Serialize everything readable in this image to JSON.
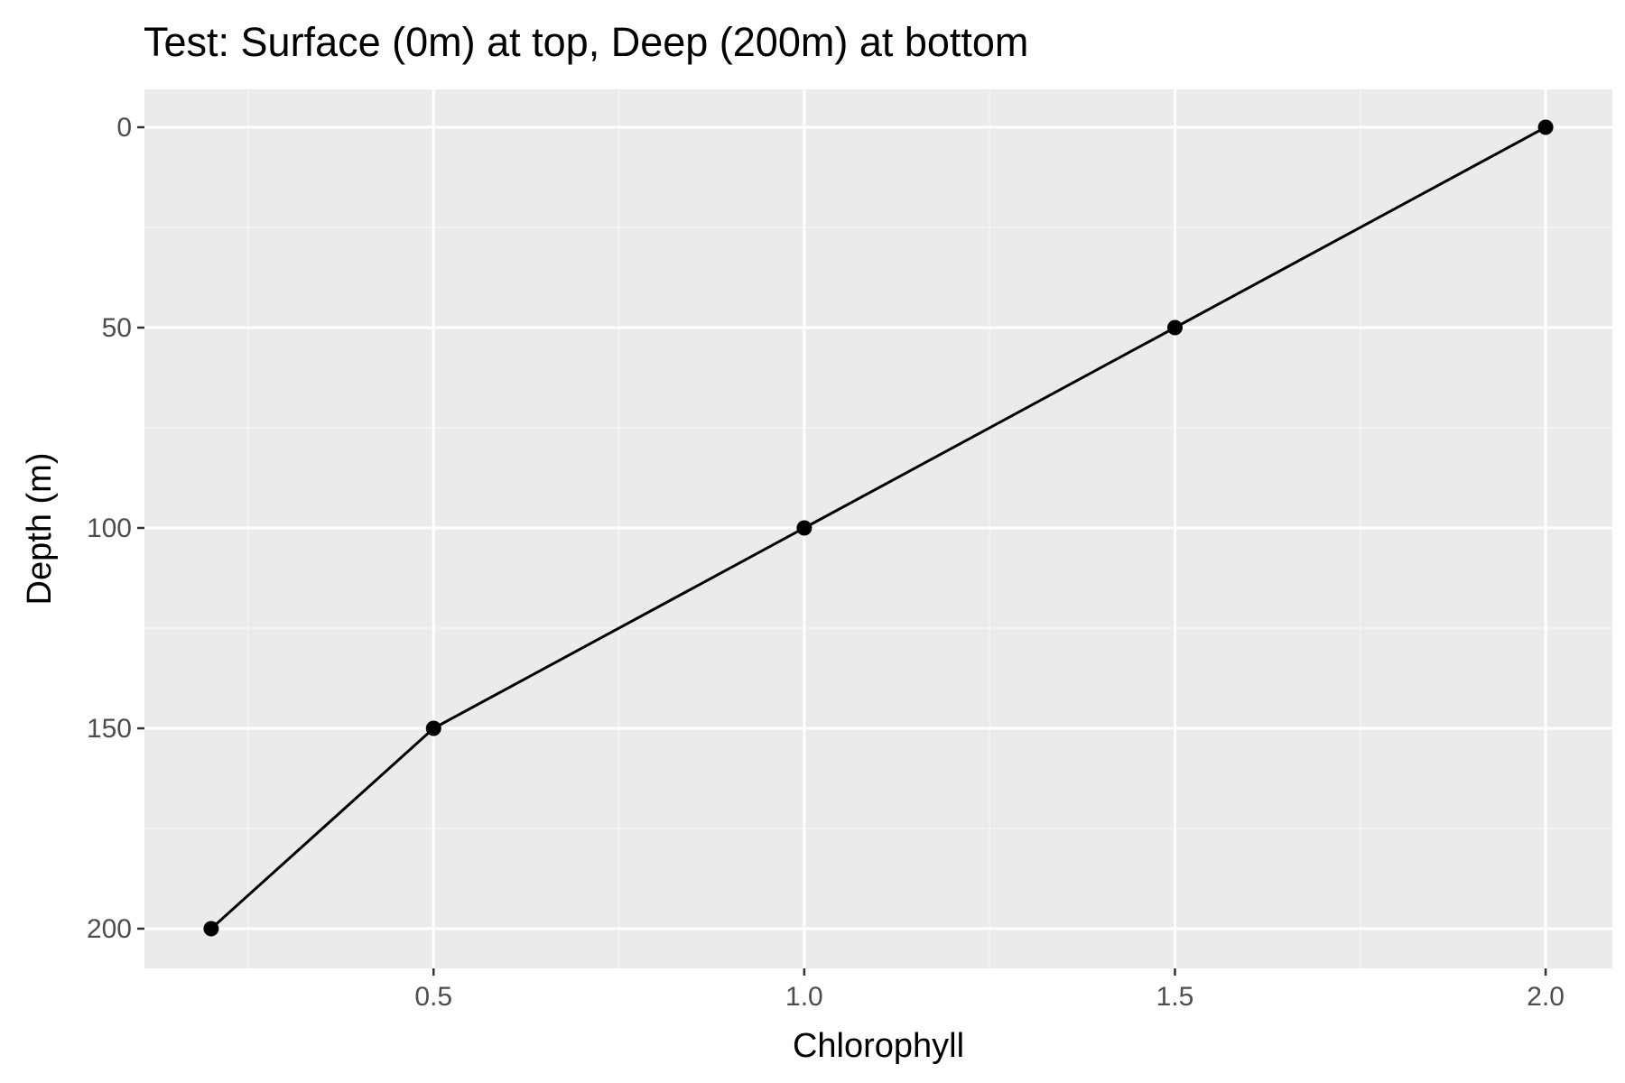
{
  "chart_data": {
    "type": "line",
    "title": "Test: Surface (0m) at top, Deep (200m) at bottom",
    "xlabel": "Chlorophyll",
    "ylabel": "Depth (m)",
    "x_ticks": [
      "0.5",
      "1.0",
      "1.5",
      "2.0"
    ],
    "y_ticks": [
      "0",
      "50",
      "100",
      "150",
      "200"
    ],
    "x_tick_values": [
      0.5,
      1.0,
      1.5,
      2.0
    ],
    "y_tick_values": [
      0,
      50,
      100,
      150,
      200
    ],
    "xlim": [
      0.11,
      2.09
    ],
    "ylim": [
      0,
      200
    ],
    "y_reversed": true,
    "grid": true,
    "series": [
      {
        "x": [
          0.2,
          0.5,
          1.0,
          1.5,
          2.0
        ],
        "y": [
          200,
          150,
          100,
          50,
          0
        ]
      }
    ],
    "colors": {
      "panel_background": "#ebebeb",
      "grid_major": "#ffffff",
      "grid_minor": "#f5f5f5",
      "line": "#000000",
      "point": "#000000",
      "tick_label": "#4d4d4d",
      "tick_mark": "#333333"
    }
  }
}
